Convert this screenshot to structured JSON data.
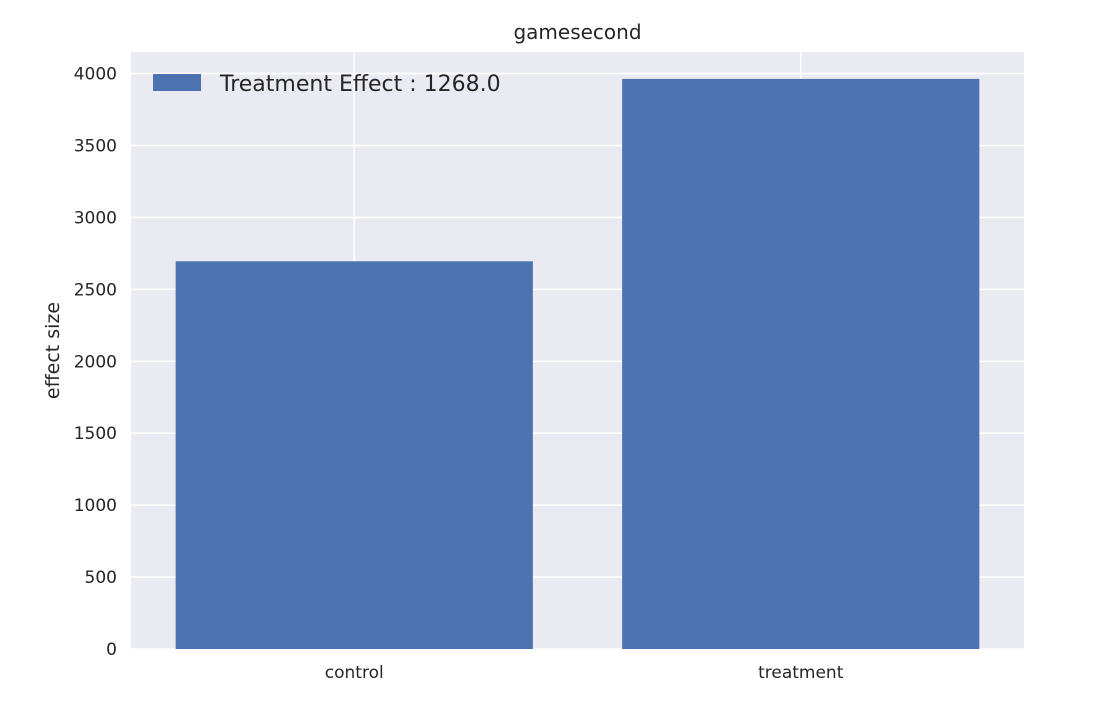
{
  "chart_data": {
    "type": "bar",
    "title": "gamesecond",
    "xlabel": "",
    "ylabel": "effect size",
    "categories": [
      "control",
      "treatment"
    ],
    "values": [
      2695,
      3963
    ],
    "ylim": [
      0,
      4150
    ],
    "yticks": [
      0,
      500,
      1000,
      1500,
      2000,
      2500,
      3000,
      3500,
      4000
    ],
    "ytick_labels": [
      "0",
      "500",
      "1000",
      "1500",
      "2000",
      "2500",
      "3000",
      "3500",
      "4000"
    ],
    "grid": true,
    "legend": {
      "position": "upper-left",
      "entries": [
        {
          "label": "Treatment Effect : 1268.0",
          "color": "#4c72b0"
        }
      ]
    },
    "colors": {
      "bar": "#4c72b0",
      "plot_background": "#eaeaf2",
      "grid": "#ffffff"
    }
  }
}
